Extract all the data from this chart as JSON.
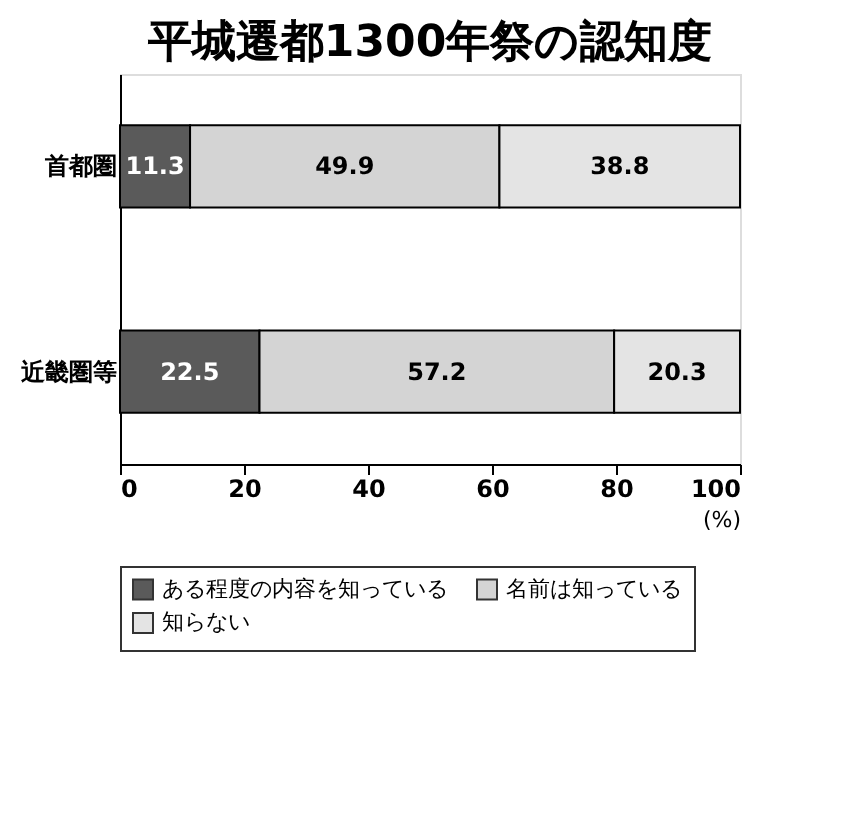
{
  "chart_data": {
    "type": "bar",
    "title": "平城遷都1300年祭の認知度",
    "orientation": "horizontal",
    "stacked": true,
    "categories": [
      "首都圏",
      "近畿圏等"
    ],
    "series": [
      {
        "name": "ある程度の内容を知っている",
        "color": "#5a5a5a",
        "values": [
          11.3,
          22.5
        ]
      },
      {
        "name": "名前は知っている",
        "color": "#d4d4d4",
        "values": [
          49.9,
          57.2
        ]
      },
      {
        "name": "知らない",
        "color": "#e4e4e4",
        "values": [
          38.8,
          20.3
        ]
      }
    ],
    "xlim": [
      0,
      100
    ],
    "xticks": [
      0,
      20,
      40,
      60,
      80,
      100
    ],
    "xlabel": "(%)",
    "data_labels": true,
    "grid": false,
    "legend": "bottom"
  }
}
